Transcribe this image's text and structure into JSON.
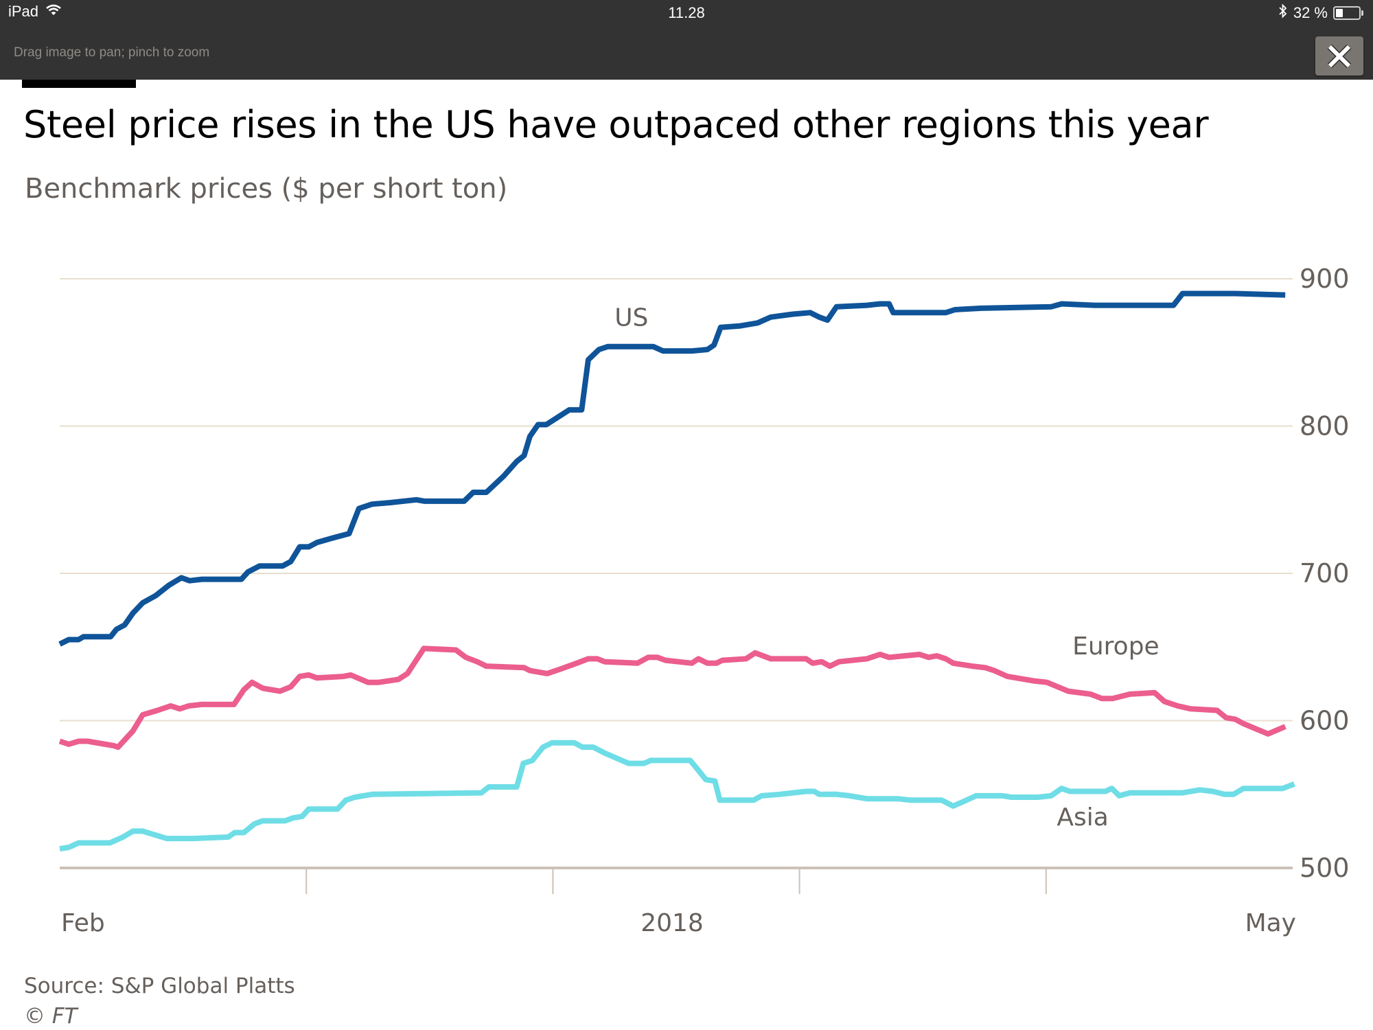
{
  "status_bar": {
    "device": "iPad",
    "time": "11.28",
    "battery_percent_label": "32 %",
    "battery_level": 0.32,
    "icons": [
      "wifi-icon",
      "bluetooth-icon",
      "battery-icon"
    ]
  },
  "viewer": {
    "hint": "Drag image to pan; pinch to zoom",
    "close_icon": "close-icon"
  },
  "header": {
    "title": "Steel price rises in the US have outpaced other regions this year",
    "subtitle": "Benchmark prices ($ per short ton)"
  },
  "footer": {
    "source": "Source: S&P Global Platts",
    "copyright": "© FT"
  },
  "colors": {
    "us": "#0f5499",
    "europe": "#eb5e8d",
    "asia": "#6fdde6",
    "grid": "#e9decf",
    "axis": "#ccc1b7",
    "text_muted": "#66605c"
  },
  "chart_data": {
    "type": "line",
    "title": "Steel price rises in the US have outpaced other regions this year",
    "subtitle": "Benchmark prices ($ per short ton)",
    "xlabel": "",
    "ylabel": "$ per short ton",
    "x_unit": "months since start of Feb 2017",
    "xlim": [
      0,
      15
    ],
    "ylim": [
      500,
      900
    ],
    "y_ticks": [
      500,
      600,
      700,
      800,
      900
    ],
    "y_tick_labels": [
      "500",
      "600",
      "700",
      "800",
      "900"
    ],
    "y_axis_side": "right",
    "x_ticks": [
      0,
      3,
      6,
      9,
      12,
      15
    ],
    "x_tick_labels": [
      {
        "label": "Feb",
        "x": 0,
        "anchor": "start"
      },
      {
        "label": "2018",
        "x": 7.45,
        "anchor": "middle"
      },
      {
        "label": "May",
        "x": 15,
        "anchor": "end"
      }
    ],
    "grid": true,
    "legend": "inline labels",
    "series": [
      {
        "name": "US",
        "key": "us",
        "label_pos": {
          "x": 6.75,
          "y": 868
        },
        "points": [
          [
            0,
            652
          ],
          [
            0.11,
            655
          ],
          [
            0.23,
            655
          ],
          [
            0.29,
            657
          ],
          [
            0.62,
            657
          ],
          [
            0.69,
            662
          ],
          [
            0.79,
            665
          ],
          [
            0.89,
            673
          ],
          [
            1.01,
            680
          ],
          [
            1.17,
            685
          ],
          [
            1.33,
            692
          ],
          [
            1.48,
            697
          ],
          [
            1.58,
            695
          ],
          [
            1.73,
            696
          ],
          [
            2.21,
            696
          ],
          [
            2.29,
            701
          ],
          [
            2.43,
            705
          ],
          [
            2.71,
            705
          ],
          [
            2.81,
            708
          ],
          [
            2.92,
            718
          ],
          [
            3.03,
            718
          ],
          [
            3.13,
            721
          ],
          [
            3.32,
            724
          ],
          [
            3.52,
            727
          ],
          [
            3.64,
            744
          ],
          [
            3.8,
            747
          ],
          [
            4.02,
            748
          ],
          [
            4.34,
            750
          ],
          [
            4.44,
            749
          ],
          [
            4.92,
            749
          ],
          [
            5.03,
            755
          ],
          [
            5.19,
            755
          ],
          [
            5.4,
            766
          ],
          [
            5.56,
            776
          ],
          [
            5.65,
            780
          ],
          [
            5.72,
            793
          ],
          [
            5.82,
            801
          ],
          [
            5.92,
            801
          ],
          [
            6.2,
            811
          ],
          [
            6.35,
            811
          ],
          [
            6.43,
            845
          ],
          [
            6.56,
            852
          ],
          [
            6.67,
            854
          ],
          [
            7.22,
            854
          ],
          [
            7.34,
            851
          ],
          [
            7.69,
            851
          ],
          [
            7.88,
            852
          ],
          [
            7.96,
            855
          ],
          [
            8.04,
            867
          ],
          [
            8.28,
            868
          ],
          [
            8.49,
            870
          ],
          [
            8.65,
            874
          ],
          [
            8.92,
            876
          ],
          [
            9.13,
            877
          ],
          [
            9.24,
            874
          ],
          [
            9.34,
            872
          ],
          [
            9.45,
            881
          ],
          [
            9.82,
            882
          ],
          [
            9.98,
            883
          ],
          [
            10.09,
            883
          ],
          [
            10.14,
            877
          ],
          [
            10.78,
            877
          ],
          [
            10.89,
            879
          ],
          [
            11.21,
            880
          ],
          [
            12.06,
            881
          ],
          [
            12.19,
            883
          ],
          [
            12.59,
            882
          ],
          [
            13.55,
            882
          ],
          [
            13.66,
            890
          ],
          [
            14.08,
            890
          ],
          [
            14.3,
            890
          ],
          [
            14.91,
            889
          ]
        ]
      },
      {
        "name": "Europe",
        "key": "europe",
        "label_pos": {
          "x": 12.32,
          "y": 645
        },
        "points": [
          [
            0,
            586
          ],
          [
            0.11,
            584
          ],
          [
            0.23,
            586
          ],
          [
            0.34,
            586
          ],
          [
            0.66,
            583
          ],
          [
            0.71,
            582
          ],
          [
            0.89,
            593
          ],
          [
            1.01,
            604
          ],
          [
            1.19,
            607
          ],
          [
            1.35,
            610
          ],
          [
            1.46,
            608
          ],
          [
            1.57,
            610
          ],
          [
            1.73,
            611
          ],
          [
            2.12,
            611
          ],
          [
            2.24,
            621
          ],
          [
            2.34,
            626
          ],
          [
            2.47,
            622
          ],
          [
            2.68,
            620
          ],
          [
            2.81,
            623
          ],
          [
            2.92,
            630
          ],
          [
            3.03,
            631
          ],
          [
            3.13,
            629
          ],
          [
            3.45,
            630
          ],
          [
            3.54,
            631
          ],
          [
            3.75,
            626
          ],
          [
            3.88,
            626
          ],
          [
            4.12,
            628
          ],
          [
            4.23,
            632
          ],
          [
            4.43,
            649
          ],
          [
            4.82,
            648
          ],
          [
            4.94,
            643
          ],
          [
            5.08,
            640
          ],
          [
            5.19,
            637
          ],
          [
            5.65,
            636
          ],
          [
            5.72,
            634
          ],
          [
            5.93,
            632
          ],
          [
            6.09,
            635
          ],
          [
            6.29,
            639
          ],
          [
            6.43,
            642
          ],
          [
            6.54,
            642
          ],
          [
            6.63,
            640
          ],
          [
            7.03,
            639
          ],
          [
            7.16,
            643
          ],
          [
            7.27,
            643
          ],
          [
            7.37,
            641
          ],
          [
            7.69,
            639
          ],
          [
            7.77,
            642
          ],
          [
            7.88,
            639
          ],
          [
            7.99,
            639
          ],
          [
            8.06,
            641
          ],
          [
            8.35,
            642
          ],
          [
            8.46,
            646
          ],
          [
            8.65,
            642
          ],
          [
            9.08,
            642
          ],
          [
            9.16,
            639
          ],
          [
            9.27,
            640
          ],
          [
            9.37,
            637
          ],
          [
            9.48,
            640
          ],
          [
            9.82,
            642
          ],
          [
            9.98,
            645
          ],
          [
            10.09,
            643
          ],
          [
            10.46,
            645
          ],
          [
            10.57,
            643
          ],
          [
            10.67,
            644
          ],
          [
            10.78,
            642
          ],
          [
            10.87,
            639
          ],
          [
            11.1,
            637
          ],
          [
            11.26,
            636
          ],
          [
            11.37,
            634
          ],
          [
            11.53,
            630
          ],
          [
            11.85,
            627
          ],
          [
            12.01,
            626
          ],
          [
            12.27,
            620
          ],
          [
            12.54,
            618
          ],
          [
            12.68,
            615
          ],
          [
            12.81,
            615
          ],
          [
            13.02,
            618
          ],
          [
            13.32,
            619
          ],
          [
            13.44,
            613
          ],
          [
            13.6,
            610
          ],
          [
            13.76,
            608
          ],
          [
            14.08,
            607
          ],
          [
            14.19,
            602
          ],
          [
            14.3,
            601
          ],
          [
            14.4,
            598
          ],
          [
            14.7,
            591
          ],
          [
            14.91,
            596
          ]
        ]
      },
      {
        "name": "Asia",
        "key": "asia",
        "label_pos": {
          "x": 12.13,
          "y": 529
        },
        "points": [
          [
            0,
            513
          ],
          [
            0.11,
            514
          ],
          [
            0.23,
            517
          ],
          [
            0.61,
            517
          ],
          [
            0.77,
            521
          ],
          [
            0.89,
            525
          ],
          [
            1.01,
            525
          ],
          [
            1.3,
            520
          ],
          [
            1.62,
            520
          ],
          [
            2.05,
            521
          ],
          [
            2.13,
            524
          ],
          [
            2.24,
            524
          ],
          [
            2.37,
            530
          ],
          [
            2.47,
            532
          ],
          [
            2.74,
            532
          ],
          [
            2.84,
            534
          ],
          [
            2.95,
            535
          ],
          [
            3.03,
            540
          ],
          [
            3.38,
            540
          ],
          [
            3.48,
            546
          ],
          [
            3.59,
            548
          ],
          [
            3.8,
            550
          ],
          [
            5.13,
            551
          ],
          [
            5.22,
            555
          ],
          [
            5.56,
            555
          ],
          [
            5.64,
            571
          ],
          [
            5.75,
            573
          ],
          [
            5.88,
            582
          ],
          [
            5.99,
            585
          ],
          [
            6.26,
            585
          ],
          [
            6.36,
            582
          ],
          [
            6.49,
            582
          ],
          [
            6.63,
            578
          ],
          [
            6.92,
            571
          ],
          [
            7.11,
            571
          ],
          [
            7.19,
            573
          ],
          [
            7.67,
            573
          ],
          [
            7.76,
            567
          ],
          [
            7.86,
            560
          ],
          [
            7.97,
            559
          ],
          [
            8.03,
            546
          ],
          [
            8.44,
            546
          ],
          [
            8.54,
            549
          ],
          [
            8.76,
            550
          ],
          [
            9.08,
            552
          ],
          [
            9.18,
            552
          ],
          [
            9.24,
            550
          ],
          [
            9.45,
            550
          ],
          [
            9.61,
            549
          ],
          [
            9.82,
            547
          ],
          [
            10.2,
            547
          ],
          [
            10.35,
            546
          ],
          [
            10.73,
            546
          ],
          [
            10.87,
            542
          ],
          [
            10.99,
            545
          ],
          [
            11.15,
            549
          ],
          [
            11.47,
            549
          ],
          [
            11.58,
            548
          ],
          [
            11.9,
            548
          ],
          [
            12.06,
            549
          ],
          [
            12.19,
            554
          ],
          [
            12.29,
            552
          ],
          [
            12.72,
            552
          ],
          [
            12.8,
            554
          ],
          [
            12.89,
            549
          ],
          [
            13.02,
            551
          ],
          [
            13.66,
            551
          ],
          [
            13.87,
            553
          ],
          [
            14.03,
            552
          ],
          [
            14.17,
            550
          ],
          [
            14.28,
            550
          ],
          [
            14.4,
            554
          ],
          [
            14.88,
            554
          ],
          [
            15.02,
            557
          ]
        ]
      }
    ],
    "source": "Source: S&P Global Platts"
  }
}
